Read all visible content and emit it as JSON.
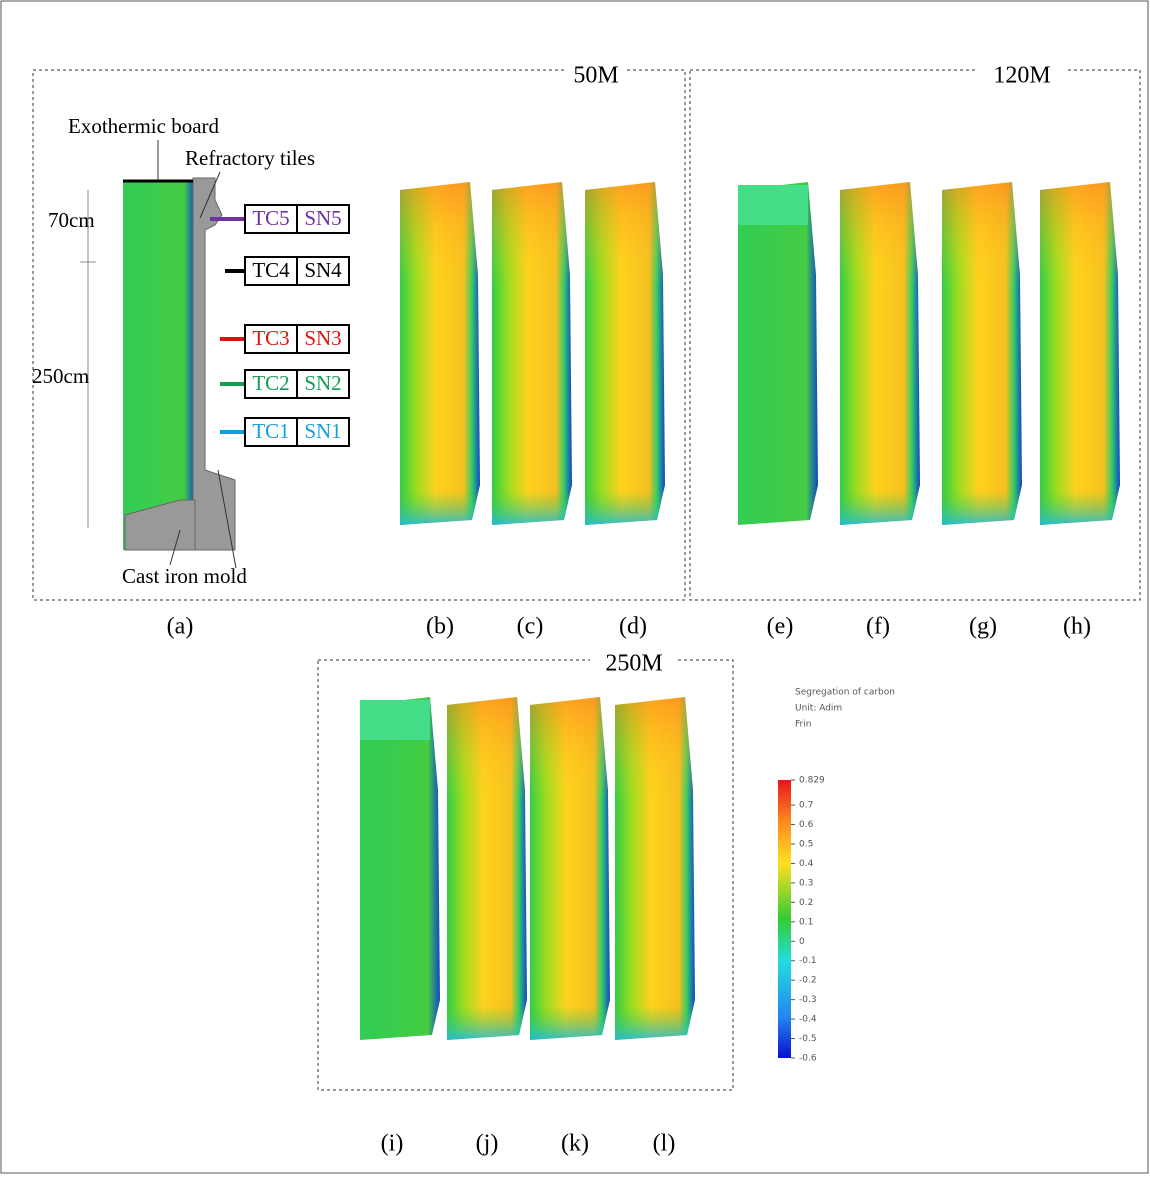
{
  "groups": [
    {
      "label": "50M"
    },
    {
      "label": "120M"
    },
    {
      "label": "250M"
    }
  ],
  "panel_labels": [
    "(a)",
    "(b)",
    "(c)",
    "(d)",
    "(e)",
    "(f)",
    "(g)",
    "(h)",
    "(i)",
    "(j)",
    "(k)",
    "(l)"
  ],
  "schematic": {
    "exothermic_board": "Exothermic board",
    "refractory_tiles": "Refractory tiles",
    "height_top": "70cm",
    "height_body": "250cm",
    "cast_iron_mold": "Cast iron mold",
    "sensors": [
      {
        "tc": "TC5",
        "sn": "SN5"
      },
      {
        "tc": "TC4",
        "sn": "SN4"
      },
      {
        "tc": "TC3",
        "sn": "SN3"
      },
      {
        "tc": "TC2",
        "sn": "SN2"
      },
      {
        "tc": "TC1",
        "sn": "SN1"
      }
    ]
  },
  "colorbar": {
    "title": "Segregation of carbon",
    "unit": "Unit: Adim",
    "name": "Frin",
    "ticks": [
      0.829,
      0.7,
      0.6,
      0.5,
      0.4,
      0.3,
      0.2,
      0.1,
      0,
      -0.1,
      -0.2,
      -0.3,
      -0.4,
      -0.5,
      -0.6
    ]
  }
}
